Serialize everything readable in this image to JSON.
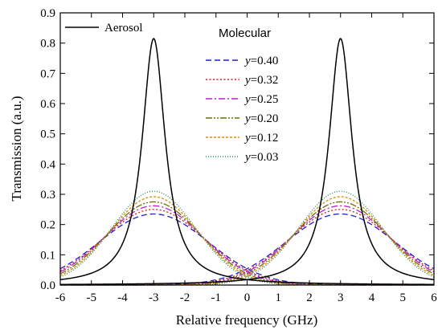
{
  "chart_data": {
    "type": "line",
    "xlabel": "Relative frequency (GHz)",
    "ylabel": "Transmission (a.u.)",
    "xlim": [
      -6,
      6
    ],
    "ylim": [
      0,
      0.9
    ],
    "x_ticks": [
      -6,
      -5,
      -4,
      -3,
      -2,
      -1,
      0,
      1,
      2,
      3,
      4,
      5,
      6
    ],
    "y_ticks": [
      0.0,
      0.1,
      0.2,
      0.3,
      0.4,
      0.5,
      0.6,
      0.7,
      0.8,
      0.9
    ],
    "x_tick_labels": [
      "-6",
      "-5",
      "-4",
      "-3",
      "-2",
      "-1",
      "0",
      "1",
      "2",
      "3",
      "4",
      "5",
      "6"
    ],
    "y_tick_labels": [
      "0.0",
      "0.1",
      "0.2",
      "0.3",
      "0.4",
      "0.5",
      "0.6",
      "0.7",
      "0.8",
      "0.9"
    ],
    "grid": false,
    "legend": {
      "placement": "top-left",
      "aerosol_label": "Aerosol",
      "molecular_header": "Molecular",
      "y_symbol": "y"
    },
    "peak_centers": [
      -3,
      3
    ],
    "aerosol": {
      "name": "Aerosol",
      "shape": "lorentzian",
      "color": "#000000",
      "peak": 0.815,
      "hwhm": 0.45
    },
    "molecular": [
      {
        "label_value": "=0.40",
        "y": 0.4,
        "color": "#1f1fd0",
        "dash": "7,4",
        "peak": 0.235,
        "sigma": 1.75
      },
      {
        "label_value": "=0.32",
        "y": 0.32,
        "color": "#d01f1f",
        "dash": "2,2.5",
        "peak": 0.25,
        "sigma": 1.65
      },
      {
        "label_value": "=0.25",
        "y": 0.25,
        "color": "#c01fd0",
        "dash": "8,3,2,3",
        "peak": 0.262,
        "sigma": 1.58
      },
      {
        "label_value": "=0.20",
        "y": 0.2,
        "color": "#6a7000",
        "dash": "8,2,2,2,2,2",
        "peak": 0.275,
        "sigma": 1.5
      },
      {
        "label_value": "=0.12",
        "y": 0.12,
        "color": "#e08a00",
        "dash": "3,2",
        "peak": 0.292,
        "sigma": 1.42
      },
      {
        "label_value": "=0.03",
        "y": 0.03,
        "color": "#1f8a6a",
        "dash": "1,2",
        "peak": 0.31,
        "sigma": 1.35
      }
    ]
  }
}
